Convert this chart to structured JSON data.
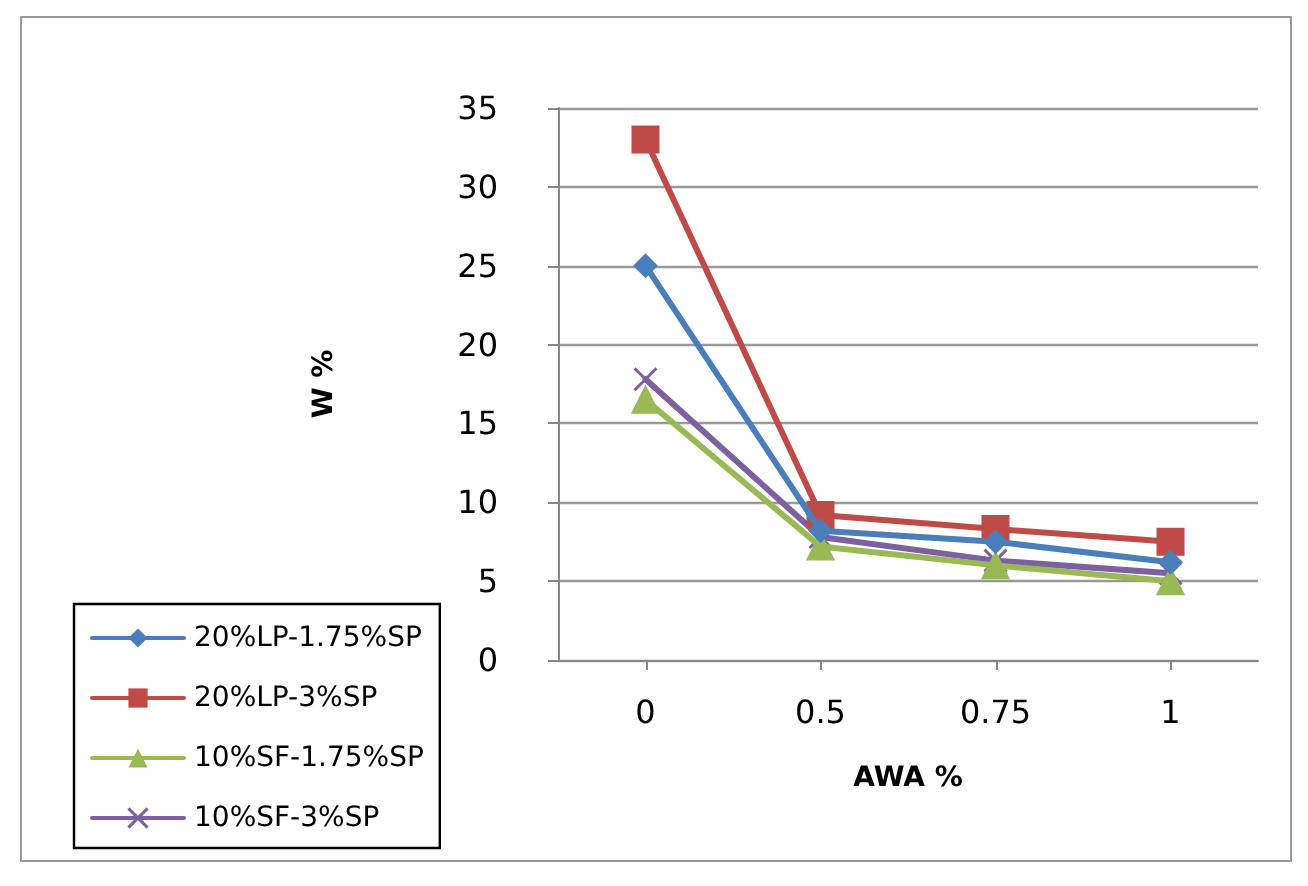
{
  "chart_data": {
    "type": "line",
    "xlabel": "AWA %",
    "ylabel": "W %",
    "categories": [
      "0",
      "0.5",
      "0.75",
      "1"
    ],
    "series": [
      {
        "name": "20%LP-1.75%SP",
        "color": "#4a7ebb",
        "marker": "diamond",
        "values": [
          25,
          8.2,
          7.5,
          6.2
        ]
      },
      {
        "name": "20%LP-3%SP",
        "color": "#be4b48",
        "marker": "square",
        "values": [
          33,
          9.2,
          8.3,
          7.5
        ]
      },
      {
        "name": "10%SF-1.75%SP",
        "color": "#98b954",
        "marker": "triangle",
        "values": [
          16.5,
          7.2,
          6,
          5
        ]
      },
      {
        "name": "10%SF-3%SP",
        "color": "#7d60a0",
        "marker": "cross",
        "values": [
          17.8,
          7.8,
          6.3,
          5.5
        ]
      }
    ],
    "ylim": [
      0,
      35
    ],
    "yticks": [
      0,
      5,
      10,
      15,
      20,
      25,
      30,
      35
    ],
    "grid": "y",
    "legend": "bottom left"
  }
}
